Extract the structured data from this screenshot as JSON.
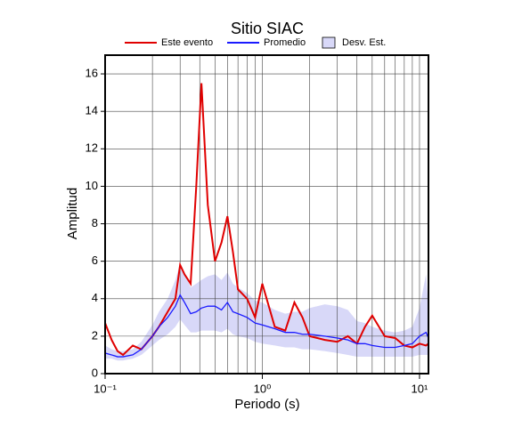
{
  "chart_data": {
    "type": "line",
    "title": "Sitio SIAC",
    "x_label": "Periodo (s)",
    "y_label": "Amplitud",
    "x": [
      0.1,
      0.11,
      0.12,
      0.13,
      0.15,
      0.17,
      0.2,
      0.22,
      0.25,
      0.28,
      0.3,
      0.32,
      0.35,
      0.38,
      0.41,
      0.45,
      0.5,
      0.55,
      0.6,
      0.65,
      0.7,
      0.8,
      0.9,
      1.0,
      1.2,
      1.4,
      1.6,
      1.8,
      2,
      2.5,
      3,
      3.5,
      4,
      4.5,
      5,
      6,
      7,
      8,
      9,
      10,
      11,
      11.4
    ],
    "series": [
      {
        "name": "Este evento",
        "color": "#e00000",
        "values": [
          2.7,
          1.8,
          1.2,
          1.0,
          1.5,
          1.3,
          2.0,
          2.5,
          3.3,
          4.0,
          5.8,
          5.3,
          4.8,
          10,
          15.5,
          9,
          6.0,
          7.0,
          8.4,
          6.5,
          4.5,
          4.0,
          3.0,
          4.8,
          2.5,
          2.3,
          3.8,
          3.0,
          2.0,
          1.8,
          1.7,
          2.0,
          1.6,
          2.5,
          3.1,
          2.0,
          1.9,
          1.5,
          1.4,
          1.6,
          1.5,
          1.6
        ]
      },
      {
        "name": "Promedio",
        "color": "#1a1aff",
        "values": [
          1.1,
          1.0,
          0.9,
          0.9,
          1.0,
          1.3,
          2.0,
          2.5,
          3.0,
          3.6,
          4.2,
          3.8,
          3.2,
          3.3,
          3.5,
          3.6,
          3.6,
          3.4,
          3.8,
          3.3,
          3.2,
          3.0,
          2.7,
          2.6,
          2.4,
          2.2,
          2.2,
          2.1,
          2.1,
          2.0,
          1.9,
          1.8,
          1.6,
          1.6,
          1.5,
          1.4,
          1.4,
          1.5,
          1.6,
          2.0,
          2.2,
          1.9
        ]
      }
    ],
    "band": {
      "name": "Desv. Est.",
      "color": "#d8d8f8",
      "lower": [
        0.8,
        0.8,
        0.7,
        0.7,
        0.8,
        1.0,
        1.5,
        1.8,
        2.1,
        2.5,
        2.9,
        2.6,
        2.2,
        2.2,
        2.3,
        2.3,
        2.3,
        2.2,
        2.4,
        2.1,
        2.0,
        1.9,
        1.7,
        1.6,
        1.5,
        1.4,
        1.4,
        1.3,
        1.3,
        1.2,
        1.1,
        1.0,
        0.9,
        0.9,
        0.9,
        0.9,
        0.9,
        0.9,
        0.9,
        1.0,
        1.0,
        1.0
      ],
      "upper": [
        1.5,
        1.3,
        1.2,
        1.2,
        1.3,
        1.7,
        2.6,
        3.3,
        4.0,
        5.0,
        5.9,
        5.4,
        4.6,
        4.8,
        5.0,
        5.2,
        5.3,
        5.0,
        5.4,
        4.8,
        4.6,
        4.3,
        3.9,
        3.8,
        3.4,
        3.2,
        3.3,
        3.3,
        3.5,
        3.7,
        3.6,
        3.4,
        2.8,
        2.7,
        2.5,
        2.3,
        2.2,
        2.3,
        2.5,
        3.5,
        5.3,
        3.5
      ]
    },
    "xlim": [
      0.1,
      11.4
    ],
    "ylim": [
      0,
      17
    ],
    "xscale": "log",
    "xticks": [
      {
        "value": 0.1,
        "label": "10⁻¹"
      },
      {
        "value": 1,
        "label": "10⁰"
      },
      {
        "value": 10,
        "label": "10¹"
      }
    ],
    "yticks": [
      0,
      2,
      4,
      6,
      8,
      10,
      12,
      14,
      16
    ],
    "grid": true,
    "legend": "top"
  }
}
